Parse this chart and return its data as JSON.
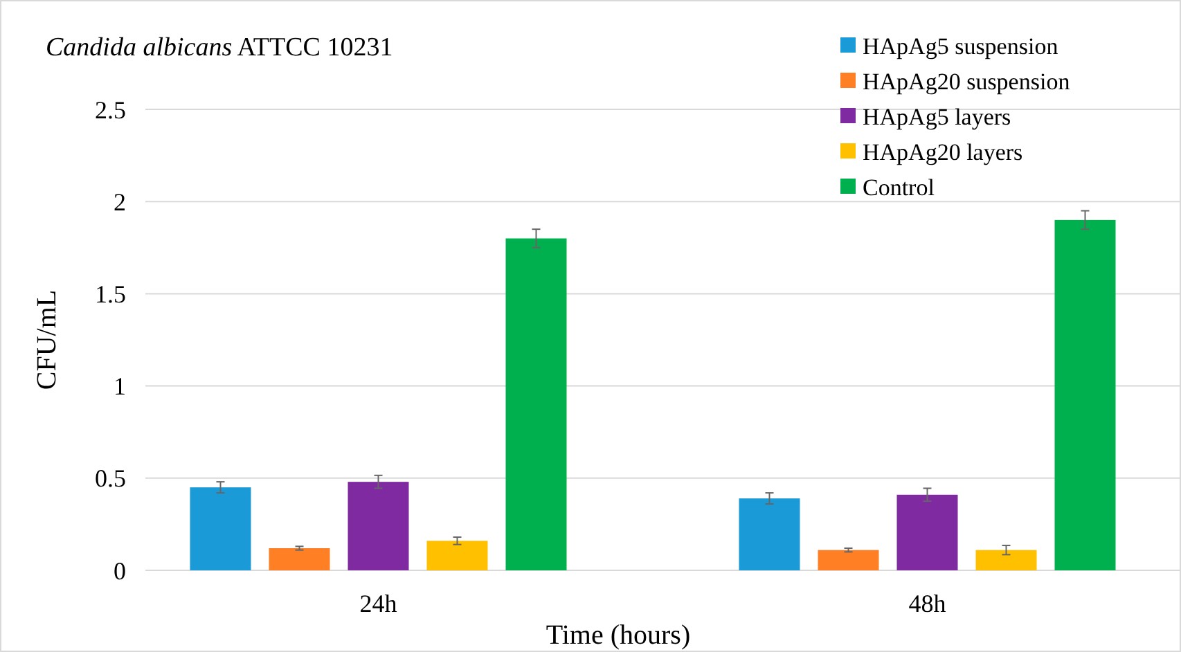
{
  "chart_data": {
    "type": "bar",
    "title": "Candida albicans ATTCC 10231",
    "xlabel": "Time (hours)",
    "ylabel": "CFU/mL",
    "categories": [
      "24h",
      "48h"
    ],
    "series": [
      {
        "name": "HApAg5 suspension",
        "color": "#1a9ad6",
        "values": [
          0.45,
          0.39
        ],
        "errors": [
          0.03,
          0.03
        ]
      },
      {
        "name": "HApAg20 suspension",
        "color": "#ff7f24",
        "values": [
          0.12,
          0.11
        ],
        "errors": [
          0.01,
          0.01
        ]
      },
      {
        "name": "HApAg5 layers",
        "color": "#7f2aa0",
        "values": [
          0.48,
          0.41
        ],
        "errors": [
          0.035,
          0.035
        ]
      },
      {
        "name": "HApAg20 layers",
        "color": "#ffc000",
        "values": [
          0.16,
          0.11
        ],
        "errors": [
          0.02,
          0.025
        ]
      },
      {
        "name": "Control",
        "color": "#00b04f",
        "values": [
          1.8,
          1.9
        ],
        "errors": [
          0.05,
          0.05
        ]
      }
    ],
    "ylim": [
      0,
      2.5
    ],
    "yticks": [
      0,
      0.5,
      1,
      1.5,
      2,
      2.5
    ],
    "grid": "y",
    "legend": "top right"
  }
}
